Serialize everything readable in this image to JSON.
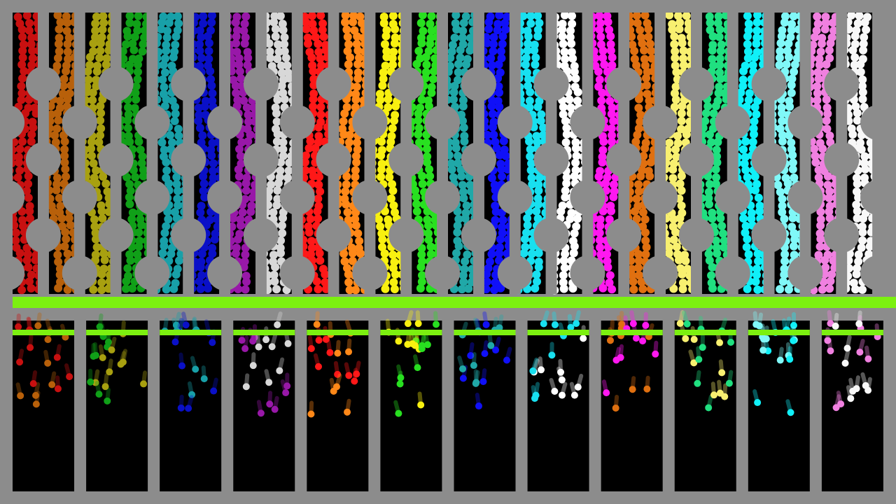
{
  "lanes": [
    {
      "color": "#c81010"
    },
    {
      "color": "#b8600a"
    },
    {
      "color": "#a8a010"
    },
    {
      "color": "#10a018"
    },
    {
      "color": "#18a0a8"
    },
    {
      "color": "#0a10c8"
    },
    {
      "color": "#9818a8"
    },
    {
      "color": "#d8d8d8"
    },
    {
      "color": "#ff1818"
    },
    {
      "color": "#ff8818"
    },
    {
      "color": "#f8f010"
    },
    {
      "color": "#28e020"
    },
    {
      "color": "#20a8a8"
    },
    {
      "color": "#1010f8"
    },
    {
      "color": "#18e0f0"
    },
    {
      "color": "#ffffff"
    },
    {
      "color": "#ff18f0"
    },
    {
      "color": "#e07010"
    },
    {
      "color": "#f8f070"
    },
    {
      "color": "#20e080"
    },
    {
      "color": "#10f0f8"
    },
    {
      "color": "#80f8f8"
    },
    {
      "color": "#f080e0"
    },
    {
      "color": "#f8f8f8"
    }
  ]
}
